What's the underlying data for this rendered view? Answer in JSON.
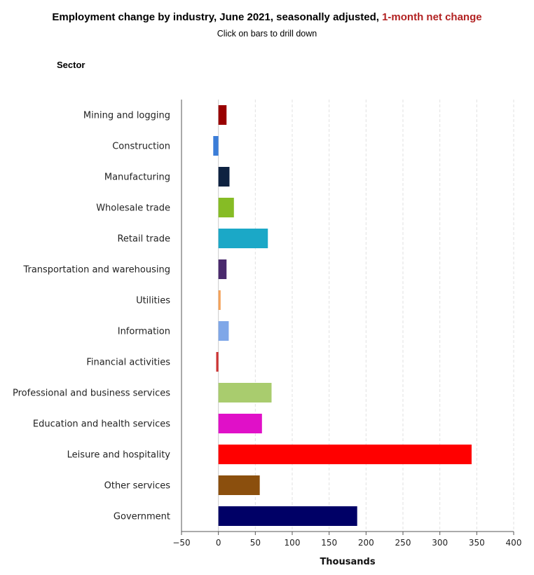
{
  "header": {
    "title_main": "Employment change by industry, June 2021, seasonally adjusted,",
    "title_highlight": "1-month net change",
    "subtitle": "Click on bars to drill down"
  },
  "axis_header": "Sector",
  "chart_data": {
    "type": "bar",
    "orientation": "horizontal",
    "title": "Employment change by industry, June 2021, seasonally adjusted, 1-month net change",
    "xlabel": "Thousands",
    "ylabel": "Sector",
    "xlim": [
      -50,
      400
    ],
    "xticks": [
      -50,
      0,
      50,
      100,
      150,
      200,
      250,
      300,
      350,
      400
    ],
    "grid": true,
    "categories": [
      "Mining and logging",
      "Construction",
      "Manufacturing",
      "Wholesale trade",
      "Retail trade",
      "Transportation and warehousing",
      "Utilities",
      "Information",
      "Financial activities",
      "Professional and business services",
      "Education and health services",
      "Leisure and hospitality",
      "Other services",
      "Government"
    ],
    "values": [
      11,
      -7,
      15,
      21,
      67,
      11,
      3,
      14,
      -3,
      72,
      59,
      343,
      56,
      188
    ],
    "colors": [
      "#990000",
      "#3b7dd8",
      "#0e2241",
      "#86bc25",
      "#1ba8c7",
      "#4a2a6d",
      "#f4a259",
      "#7fa7e8",
      "#cc3333",
      "#a9cc6e",
      "#e010c8",
      "#ff0000",
      "#8b4f0d",
      "#000066"
    ]
  }
}
